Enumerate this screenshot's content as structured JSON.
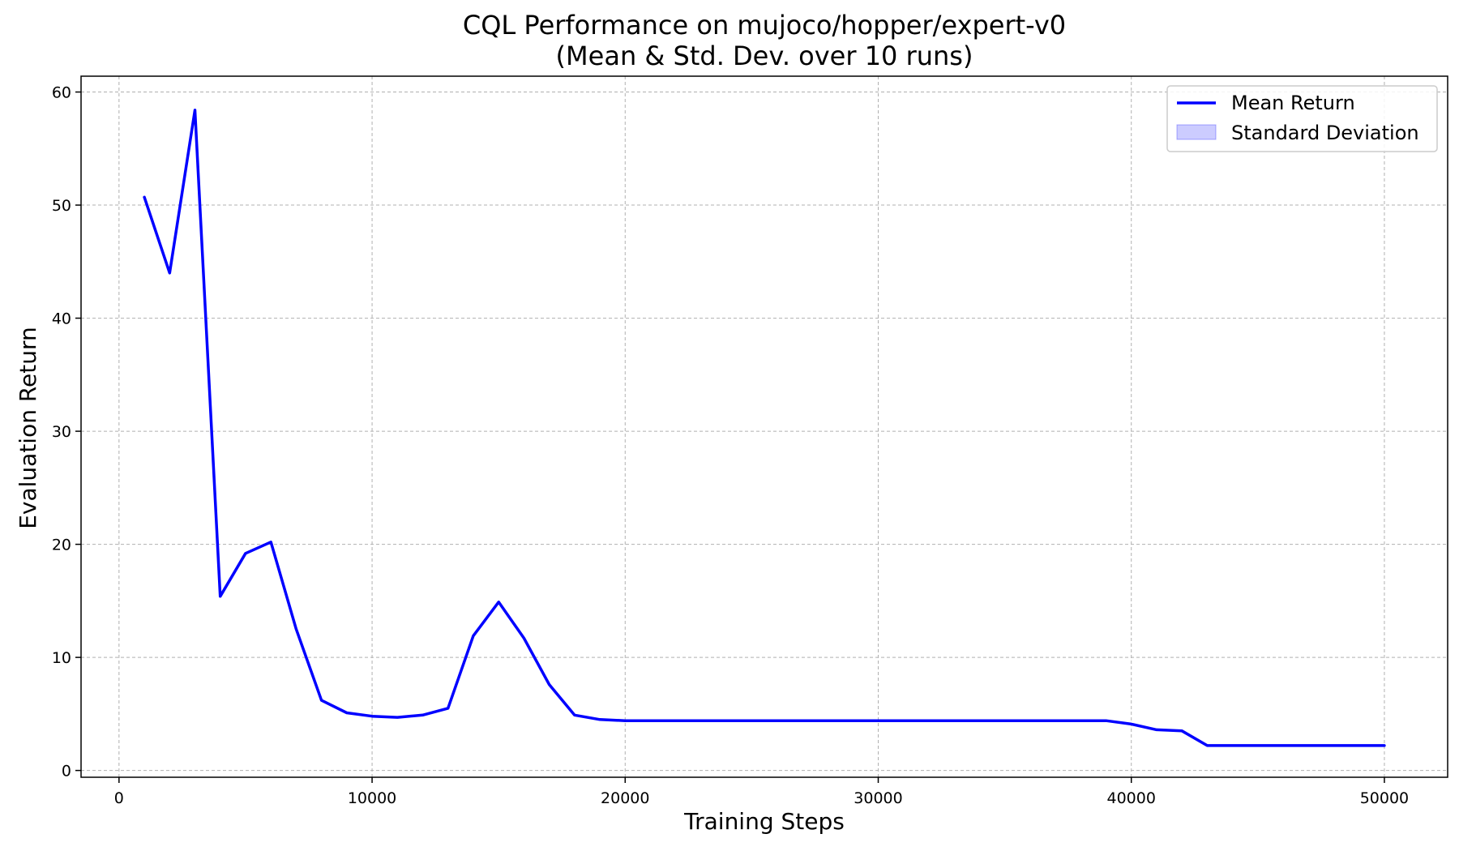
{
  "chart_data": {
    "type": "line",
    "title": "CQL Performance on mujoco/hopper/expert-v0",
    "subtitle": "(Mean & Std. Dev. over 10 runs)",
    "xlabel": "Training Steps",
    "ylabel": "Evaluation Return",
    "xlim": [
      -1500,
      52500
    ],
    "ylim": [
      -0.6,
      61.4
    ],
    "xticks": [
      0,
      10000,
      20000,
      30000,
      40000,
      50000
    ],
    "yticks": [
      0,
      10,
      20,
      30,
      40,
      50,
      60
    ],
    "grid": true,
    "legend_position": "top-right",
    "series": [
      {
        "name": "Mean Return",
        "color": "#0000ff",
        "x": [
          1000,
          2000,
          3000,
          4000,
          5000,
          6000,
          7000,
          8000,
          9000,
          10000,
          11000,
          12000,
          13000,
          14000,
          15000,
          16000,
          17000,
          18000,
          19000,
          20000,
          21000,
          22000,
          23000,
          24000,
          25000,
          26000,
          27000,
          28000,
          29000,
          30000,
          31000,
          32000,
          33000,
          34000,
          35000,
          36000,
          37000,
          38000,
          39000,
          40000,
          41000,
          42000,
          43000,
          44000,
          45000,
          46000,
          47000,
          48000,
          49000,
          50000
        ],
        "y": [
          50.7,
          44.0,
          58.4,
          15.4,
          19.2,
          20.2,
          12.5,
          6.2,
          5.1,
          4.8,
          4.7,
          4.9,
          5.5,
          11.9,
          14.9,
          11.7,
          7.6,
          4.9,
          4.5,
          4.4,
          4.4,
          4.4,
          4.4,
          4.4,
          4.4,
          4.4,
          4.4,
          4.4,
          4.4,
          4.4,
          4.4,
          4.4,
          4.4,
          4.4,
          4.4,
          4.4,
          4.4,
          4.4,
          4.4,
          4.1,
          3.6,
          3.5,
          2.2,
          2.2,
          2.2,
          2.2,
          2.2,
          2.2,
          2.2,
          2.2
        ]
      }
    ],
    "band": {
      "name": "Standard Deviation",
      "color": "#0000ff",
      "opacity": 0.2,
      "std": [
        0,
        0,
        0,
        0,
        0,
        0,
        0,
        0,
        0,
        0,
        0,
        0,
        0,
        0,
        0,
        0,
        0,
        0,
        0,
        0,
        0,
        0,
        0,
        0,
        0,
        0,
        0,
        0,
        0,
        0,
        0,
        0,
        0,
        0,
        0,
        0,
        0,
        0,
        0,
        0,
        0,
        0,
        0,
        0,
        0,
        0,
        0,
        0,
        0,
        0
      ]
    }
  }
}
